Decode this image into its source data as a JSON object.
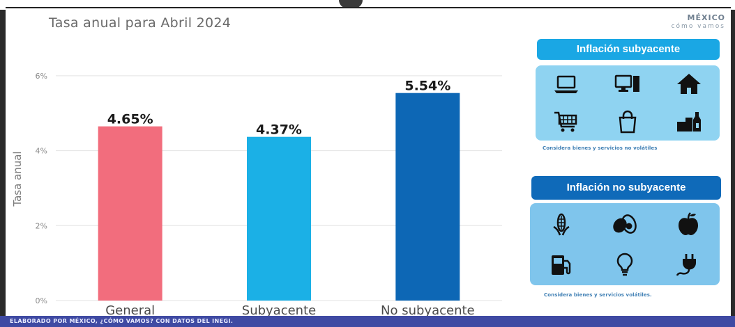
{
  "brand": {
    "line1": "MÉXICO",
    "line2": "cómo vamos"
  },
  "panels": {
    "core": {
      "title": "Inflación subyacente",
      "note": "Considera bienes y servicios no volátiles",
      "icons": [
        "laptop-icon",
        "desktop-computer-icon",
        "house-icon",
        "shopping-cart-icon",
        "shopping-bag-icon",
        "groceries-icon"
      ]
    },
    "noncore": {
      "title": "Inflación no subyacente",
      "note": "Considera bienes y servicios volátiles.",
      "icons": [
        "corn-icon",
        "avocado-icon",
        "apple-icon",
        "fuel-pump-icon",
        "light-bulb-icon",
        "electric-plug-icon"
      ]
    }
  },
  "footer": {
    "text": "ELABORADO POR MÉXICO, ¿CÓMO VAMOS? CON DATOS DEL INEGI."
  },
  "chart_data": {
    "type": "bar",
    "title": "Tasa anual para Abril 2024",
    "xlabel": "",
    "ylabel": "Tasa anual",
    "categories": [
      "General",
      "Subyacente",
      "No subyacente"
    ],
    "values": [
      4.65,
      4.37,
      5.54
    ],
    "data_labels": [
      "4.65%",
      "4.37%",
      "5.54%"
    ],
    "colors": [
      "#f26d7d",
      "#1bb0e6",
      "#0d67b5"
    ],
    "yticks": [
      0,
      2,
      4,
      6
    ],
    "ytick_labels": [
      "0%",
      "2%",
      "4%",
      "6%"
    ],
    "ylim": [
      0,
      6.5
    ],
    "grid": true,
    "legend": "none"
  }
}
